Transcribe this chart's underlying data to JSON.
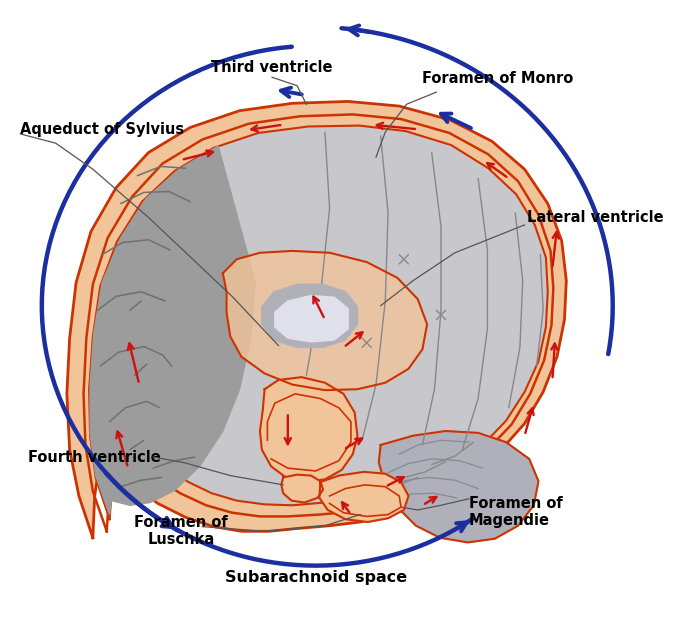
{
  "bg_color": "#ffffff",
  "labels": {
    "third_ventricle": "Third ventricle",
    "foramen_monro": "Foramen of Monro",
    "aqueduct_sylvius": "Aqueduct of Sylvius",
    "lateral_ventricle": "Lateral ventricle",
    "fourth_ventricle": "Fourth ventricle",
    "foramen_luschka": "Foramen of\nLuschka",
    "foramen_magendie": "Foramen of\nMagendie",
    "subarachnoid": "Subarachnoid space"
  },
  "blue_arrow_color": "#1c2fa0",
  "red_arrow_color": "#cc1111",
  "peach_color": "#f2c49a",
  "red_border_color": "#cc3300",
  "gray_brain_color": "#a8a8a8",
  "gray_light_color": "#c8c8cc",
  "gray_dark_color": "#888890",
  "sulci_color": "#707070",
  "white_matter_color": "#d0d0d8",
  "label_fontsize": 10.5
}
